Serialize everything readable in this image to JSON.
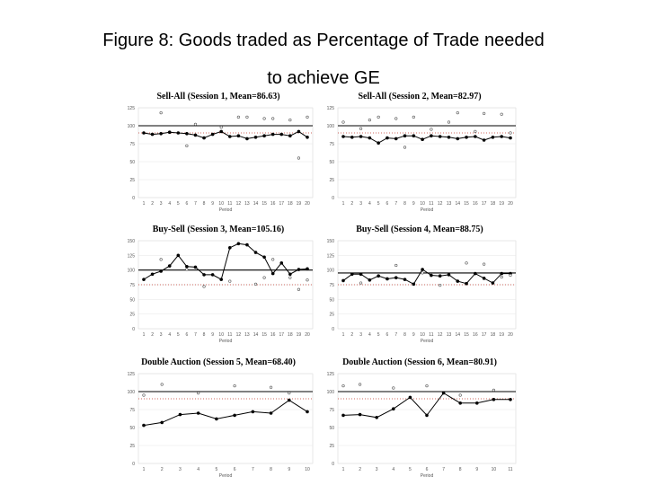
{
  "page": {
    "title_line1": "Figure 8: Goods traded as Percentage of Trade needed",
    "title_line2": "to achieve GE"
  },
  "chart_data": [
    {
      "type": "line",
      "title": "Sell-All (Session 1, Mean=86.63)",
      "xlabel": "Period",
      "x": [
        1,
        2,
        3,
        4,
        5,
        6,
        7,
        8,
        9,
        10,
        11,
        12,
        13,
        14,
        15,
        16,
        17,
        18,
        19,
        20
      ],
      "yticks": [
        0,
        25,
        50,
        75,
        100,
        125
      ],
      "ylim": [
        0,
        125
      ],
      "reference_line": 100,
      "dotted_line": 90,
      "series": [
        {
          "values": [
            90,
            88,
            89,
            91,
            90,
            89,
            87,
            83,
            88,
            92,
            85,
            86,
            82,
            84,
            86,
            88,
            88,
            86,
            92,
            84
          ]
        },
        {
          "marker": "open",
          "values": [
            null,
            null,
            118,
            null,
            null,
            72,
            102,
            null,
            null,
            98,
            null,
            112,
            112,
            null,
            110,
            110,
            null,
            108,
            55,
            112
          ]
        }
      ]
    },
    {
      "type": "line",
      "title": "Sell-All (Session 2, Mean=82.97)",
      "xlabel": "Period",
      "x": [
        1,
        2,
        3,
        4,
        5,
        6,
        7,
        8,
        9,
        10,
        11,
        12,
        13,
        14,
        15,
        16,
        17,
        18,
        19,
        20
      ],
      "yticks": [
        0,
        25,
        50,
        75,
        100,
        125
      ],
      "ylim": [
        0,
        125
      ],
      "reference_line": 100,
      "dotted_line": 90,
      "series": [
        {
          "values": [
            85,
            84,
            85,
            83,
            76,
            83,
            82,
            86,
            86,
            81,
            86,
            85,
            84,
            82,
            84,
            85,
            80,
            84,
            85,
            83
          ]
        },
        {
          "marker": "open",
          "values": [
            105,
            null,
            96,
            108,
            112,
            null,
            110,
            70,
            112,
            null,
            95,
            null,
            105,
            118,
            null,
            92,
            117,
            null,
            116,
            90
          ]
        }
      ]
    },
    {
      "type": "line",
      "title": "Buy-Sell (Session 3, Mean=105.16)",
      "xlabel": "Period",
      "x": [
        1,
        2,
        3,
        4,
        5,
        6,
        7,
        8,
        9,
        10,
        11,
        12,
        13,
        14,
        15,
        16,
        17,
        18,
        19,
        20
      ],
      "yticks": [
        0,
        25,
        50,
        75,
        100,
        125,
        150
      ],
      "ylim": [
        0,
        150
      ],
      "reference_line": 100,
      "dotted_line": 75,
      "series": [
        {
          "values": [
            84,
            93,
            98,
            107,
            125,
            106,
            105,
            92,
            92,
            84,
            138,
            145,
            143,
            130,
            122,
            94,
            112,
            93,
            101,
            102
          ]
        },
        {
          "marker": "open",
          "values": [
            null,
            null,
            118,
            null,
            null,
            101,
            null,
            72,
            null,
            null,
            81,
            null,
            null,
            76,
            87,
            118,
            null,
            87,
            67,
            83
          ]
        }
      ]
    },
    {
      "type": "line",
      "title": "Buy-Sell (Session 4, Mean=88.75)",
      "xlabel": "Period",
      "x": [
        1,
        2,
        3,
        4,
        5,
        6,
        7,
        8,
        9,
        10,
        11,
        12,
        13,
        14,
        15,
        16,
        17,
        18,
        19,
        20
      ],
      "yticks": [
        0,
        25,
        50,
        75,
        100,
        125,
        150
      ],
      "ylim": [
        0,
        150
      ],
      "reference_line": 95,
      "dotted_line": 75,
      "series": [
        {
          "values": [
            82,
            93,
            93,
            83,
            90,
            85,
            87,
            84,
            76,
            101,
            91,
            90,
            92,
            81,
            77,
            94,
            86,
            78,
            94,
            94
          ]
        },
        {
          "marker": "open",
          "values": [
            null,
            null,
            78,
            null,
            null,
            null,
            108,
            null,
            null,
            95,
            null,
            74,
            null,
            null,
            112,
            null,
            110,
            null,
            88,
            91
          ]
        }
      ]
    },
    {
      "type": "line",
      "title": "Double Auction (Session 5, Mean=68.40)",
      "xlabel": "Period",
      "x": [
        1,
        2,
        3,
        4,
        5,
        6,
        7,
        8,
        9,
        10
      ],
      "yticks": [
        0,
        25,
        50,
        75,
        100,
        125
      ],
      "ylim": [
        0,
        125
      ],
      "reference_line": 100,
      "dotted_line": 90,
      "series": [
        {
          "values": [
            53,
            57,
            68,
            70,
            62,
            67,
            72,
            70,
            88,
            72
          ]
        },
        {
          "marker": "open",
          "values": [
            95,
            110,
            null,
            98,
            null,
            108,
            null,
            106,
            98,
            null
          ]
        }
      ]
    },
    {
      "type": "line",
      "title": "Double Auction (Session 6, Mean=80.91)",
      "xlabel": "Period",
      "x": [
        1,
        2,
        3,
        4,
        5,
        6,
        7,
        8,
        9,
        10,
        11
      ],
      "yticks": [
        0,
        25,
        50,
        75,
        100,
        125
      ],
      "ylim": [
        0,
        125
      ],
      "reference_line": 100,
      "dotted_line": 90,
      "series": [
        {
          "values": [
            67,
            68,
            64,
            76,
            92,
            67,
            98,
            84,
            84,
            89,
            89
          ]
        },
        {
          "marker": "open",
          "values": [
            108,
            110,
            null,
            105,
            null,
            108,
            null,
            95,
            null,
            102,
            null
          ]
        }
      ]
    }
  ]
}
